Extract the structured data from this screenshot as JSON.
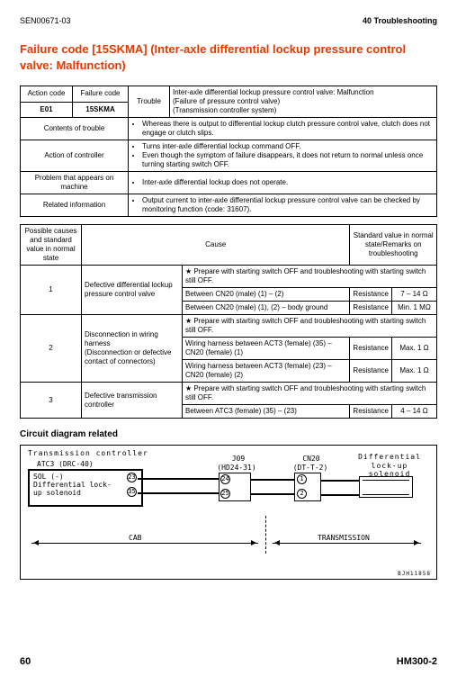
{
  "header": {
    "doc_no": "SEN00671-03",
    "section": "40 Troubleshooting"
  },
  "title": "Failure code [15SKMA] (Inter-axle differential lockup pressure control valve: Malfunction)",
  "t1": {
    "action_code_h": "Action code",
    "failure_code_h": "Failure code",
    "trouble_h": "Trouble",
    "action_code": "E01",
    "failure_code": "15SKMA",
    "trouble_text": "Inter-axle differential lockup pressure control valve: Malfunction\n(Failure of pressure control valve)\n(Transmission controller system)",
    "rows": [
      {
        "label": "Contents of trouble",
        "items": [
          "Whereas there is output to differential lockup clutch pressure control valve, clutch does not engage or clutch slips."
        ]
      },
      {
        "label": "Action of controller",
        "items": [
          "Turns inter-axle differential lockup command OFF.",
          "Even though the symptom of failure disappears, it does not return to normal unless once turning starting switch OFF."
        ]
      },
      {
        "label": "Problem that appears on machine",
        "items": [
          "Inter-axle differential lockup does not operate."
        ]
      },
      {
        "label": "Related information",
        "items": [
          "Output current to inter-axle differential lockup pressure control valve can be checked by monitoring function (code: 31607)."
        ]
      }
    ]
  },
  "t2": {
    "side_label": "Possible causes and standard value in normal state",
    "cause_h": "Cause",
    "std_h": "Standard value in normal state/Remarks on troubleshooting",
    "prepare": "Prepare with starting switch OFF and troubleshooting with starting switch still OFF.",
    "resistance_label": "Resistance",
    "causes": [
      {
        "n": "1",
        "cause": "Defective differential lockup pressure control valve",
        "rows": [
          {
            "a": "Between CN20 (male) (1) – (2)",
            "v": "7 – 14 Ω"
          },
          {
            "a": "Between CN20 (male) (1), (2) – body ground",
            "v": "Min. 1 MΩ"
          }
        ]
      },
      {
        "n": "2",
        "cause": "Disconnection in wiring harness\n(Disconnection or defective contact of connectors)",
        "rows": [
          {
            "a": "Wiring harness between ACT3 (female) (35) – CN20 (female) (1)",
            "v": "Max. 1 Ω"
          },
          {
            "a": "Wiring harness between ACT3 (female) (23) – CN20 (female) (2)",
            "v": "Max. 1 Ω"
          }
        ]
      },
      {
        "n": "3",
        "cause": "Defective transmission controller",
        "rows": [
          {
            "a": "Between ATC3 (female) (35) – (23)",
            "v": "4 – 14 Ω"
          }
        ]
      }
    ]
  },
  "diagram": {
    "heading": "Circuit diagram related",
    "tc_label": "Transmission controller",
    "atc3": "ATC3 (DRC-40)",
    "sol": "SOL (-)",
    "sol2": "Differential lock-up solenoid",
    "j09": "J09",
    "j09_sub": "(HD24-31)",
    "cn20": "CN20",
    "cn20_sub": "(DT-T-2)",
    "diff_label": "Differential lock-up solenoid",
    "pins": {
      "p23": "23",
      "p35": "35",
      "p24": "24",
      "p25": "25",
      "p1": "1",
      "p2": "2"
    },
    "cab": "CAB",
    "trans": "TRANSMISSION",
    "ref": "BJH11858"
  },
  "footer": {
    "page": "60",
    "model": "HM300-2"
  }
}
